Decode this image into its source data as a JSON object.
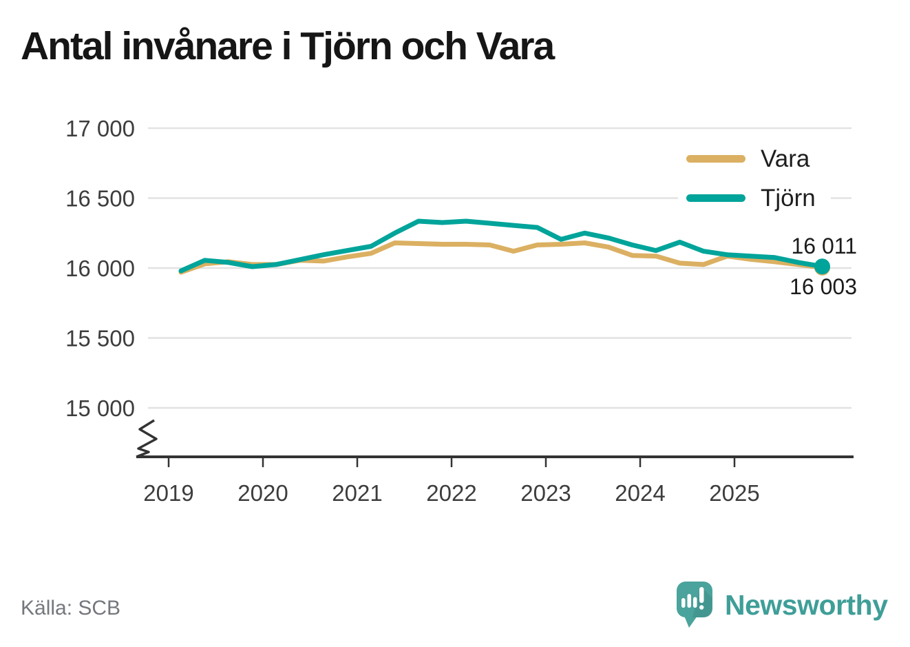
{
  "title": "Antal invånare i Tjörn och Vara",
  "footer": {
    "source": "Källa: SCB",
    "logo_text": "Newsworthy"
  },
  "colors": {
    "tjorn_line": "#00a49a",
    "vara_line": "#dbb062",
    "grid": "#e2e2e2",
    "axis": "#333333",
    "tick_text": "#3d3d3d",
    "title_text": "#161616",
    "source_text": "#74777c",
    "logo_teal": "#3f9e98",
    "background": "#ffffff"
  },
  "chart_data": {
    "type": "line",
    "title": "Antal invånare i Tjörn och Vara",
    "xlabel": "",
    "ylabel": "",
    "grid": "horizontal",
    "legend_position": "top-right",
    "y_axis_break": true,
    "ylim_displayed": [
      14800,
      17000
    ],
    "y_ticks": [
      {
        "value": 17000,
        "label": "17 000"
      },
      {
        "value": 16500,
        "label": "16 500"
      },
      {
        "value": 16000,
        "label": "16 000"
      },
      {
        "value": 15500,
        "label": "15 500"
      },
      {
        "value": 15000,
        "label": "15 000"
      }
    ],
    "x_tick_labels": [
      "2019",
      "2020",
      "2021",
      "2022",
      "2023",
      "2024",
      "2025"
    ],
    "categories": [
      "2019 Q1",
      "2019 Q2",
      "2019 Q3",
      "2019 Q4",
      "2020 Q1",
      "2020 Q2",
      "2020 Q3",
      "2020 Q4",
      "2021 Q1",
      "2021 Q2",
      "2021 Q3",
      "2021 Q4",
      "2022 Q1",
      "2022 Q2",
      "2022 Q3",
      "2022 Q4",
      "2023 Q1",
      "2023 Q2",
      "2023 Q3",
      "2023 Q4",
      "2024 Q1",
      "2024 Q2",
      "2024 Q3",
      "2024 Q4",
      "2025 Q1",
      "2025 Q2",
      "2025 Q3",
      "2025 Q4"
    ],
    "series": [
      {
        "name": "Vara",
        "color": "#dbb062",
        "end_label": "16 003",
        "end_value": 16003,
        "values": [
          15970,
          16030,
          16045,
          16025,
          16025,
          16055,
          16050,
          16080,
          16105,
          16180,
          16175,
          16170,
          16170,
          16165,
          16120,
          16165,
          16170,
          16180,
          16150,
          16090,
          16085,
          16035,
          16025,
          16085,
          16062,
          16045,
          16025,
          16003
        ]
      },
      {
        "name": "Tjörn",
        "color": "#00a49a",
        "end_label": "16 011",
        "end_value": 16011,
        "values": [
          15980,
          16055,
          16040,
          16010,
          16025,
          16060,
          16095,
          16125,
          16155,
          16250,
          16335,
          16325,
          16335,
          16320,
          16305,
          16290,
          16205,
          16250,
          16215,
          16165,
          16125,
          16185,
          16120,
          16095,
          16085,
          16075,
          16040,
          16011
        ]
      }
    ]
  }
}
